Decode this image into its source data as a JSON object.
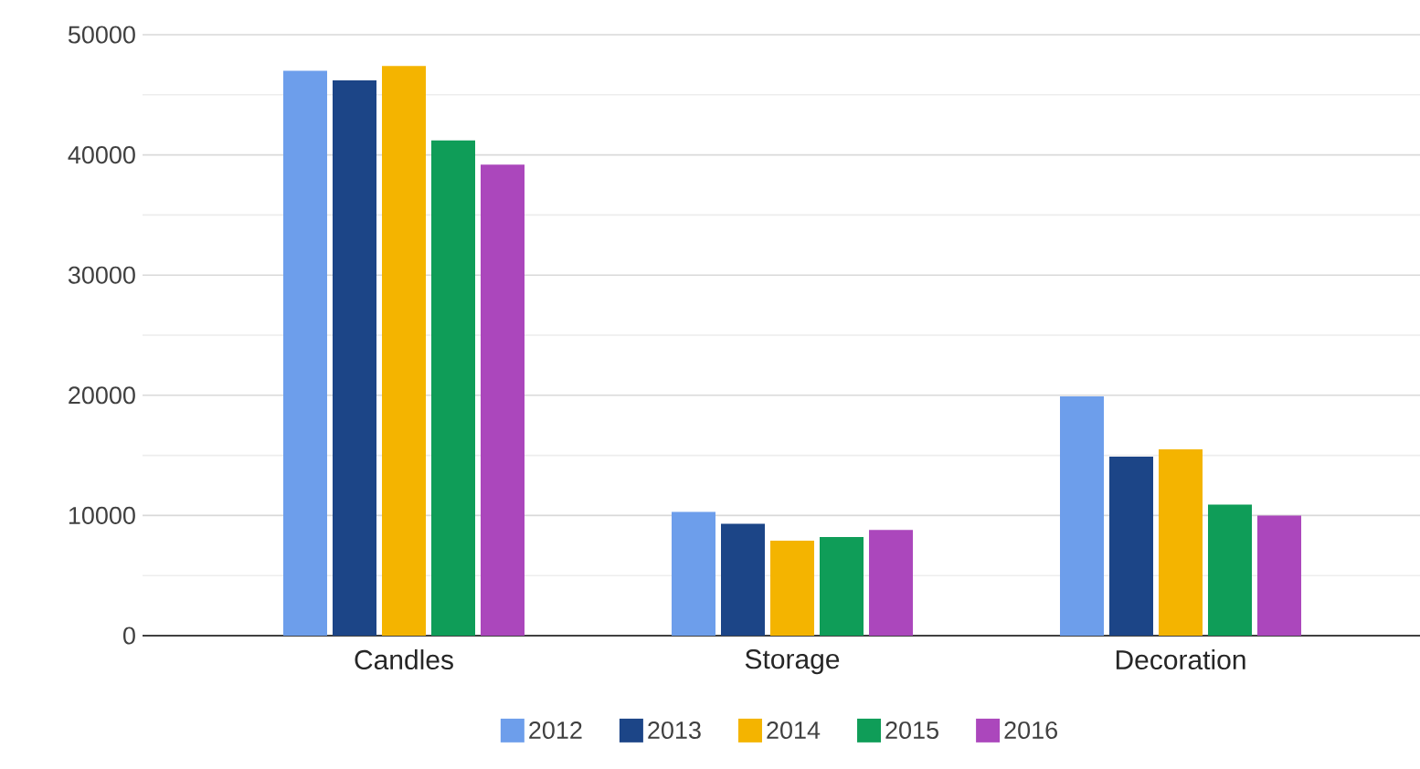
{
  "chart_data": {
    "type": "bar",
    "categories": [
      "Candles",
      "Storage",
      "Decoration"
    ],
    "series": [
      {
        "name": "2012",
        "color": "#6d9eeb",
        "values": [
          47000,
          10300,
          19900
        ]
      },
      {
        "name": "2013",
        "color": "#1c4587",
        "values": [
          46200,
          9300,
          14900
        ]
      },
      {
        "name": "2014",
        "color": "#f4b400",
        "values": [
          47400,
          7900,
          15500
        ]
      },
      {
        "name": "2015",
        "color": "#0f9d58",
        "values": [
          41200,
          8200,
          10900
        ]
      },
      {
        "name": "2016",
        "color": "#ab47bc",
        "values": [
          39200,
          8800,
          10000
        ]
      }
    ],
    "ylim": [
      0,
      50000
    ],
    "yticks": [
      0,
      10000,
      20000,
      30000,
      40000,
      50000
    ],
    "grid": "y",
    "legend": "bottom"
  }
}
